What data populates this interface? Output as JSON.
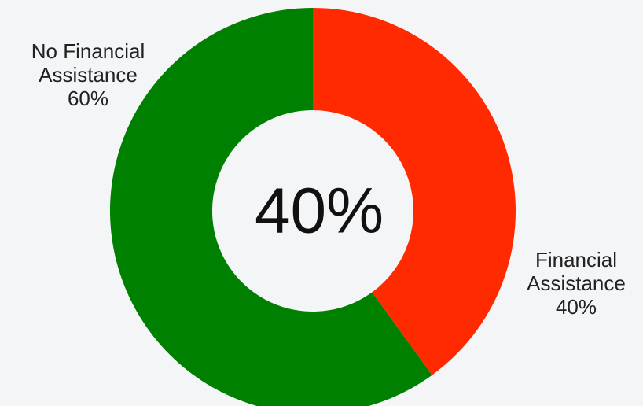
{
  "chart_data": {
    "type": "donut",
    "categories": [
      "Financial Assistance",
      "No Financial Assistance"
    ],
    "values": [
      40,
      60
    ],
    "value_labels": [
      "40%",
      "60%"
    ],
    "colors": [
      "#ff2a00",
      "#008000"
    ],
    "center_label": "40%"
  }
}
